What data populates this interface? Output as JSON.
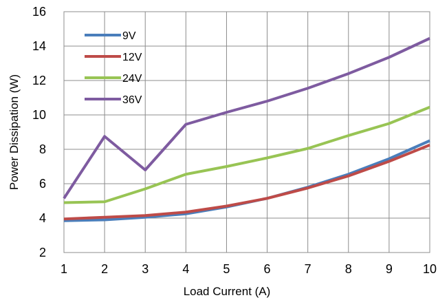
{
  "chart_data": {
    "type": "line",
    "title": "",
    "xlabel": "Load Current (A)",
    "ylabel": "Power Dissipation (W)",
    "x": [
      1,
      2,
      3,
      4,
      5,
      6,
      7,
      8,
      9,
      10
    ],
    "xlim": [
      1,
      10
    ],
    "ylim": [
      2,
      16
    ],
    "xticks": [
      "1",
      "2",
      "3",
      "4",
      "5",
      "6",
      "7",
      "8",
      "9",
      "10"
    ],
    "yticks": [
      "2",
      "4",
      "6",
      "8",
      "10",
      "12",
      "14",
      "16"
    ],
    "grid": true,
    "legend_position": "top-left",
    "series": [
      {
        "name": "9V",
        "color": "#4a7ebb",
        "values": [
          3.85,
          3.9,
          4.05,
          4.25,
          4.65,
          5.15,
          5.8,
          6.55,
          7.45,
          8.5
        ]
      },
      {
        "name": "12V",
        "color": "#be4b48",
        "values": [
          3.95,
          4.05,
          4.15,
          4.35,
          4.7,
          5.15,
          5.75,
          6.45,
          7.3,
          8.25
        ]
      },
      {
        "name": "24V",
        "color": "#98c454",
        "values": [
          4.9,
          4.95,
          5.7,
          6.55,
          7.0,
          7.5,
          8.05,
          8.8,
          9.5,
          10.45
        ]
      },
      {
        "name": "36V",
        "color": "#7e5ba0",
        "values": [
          5.15,
          8.75,
          6.8,
          9.45,
          10.15,
          10.8,
          11.55,
          12.4,
          13.35,
          14.45
        ]
      }
    ]
  }
}
